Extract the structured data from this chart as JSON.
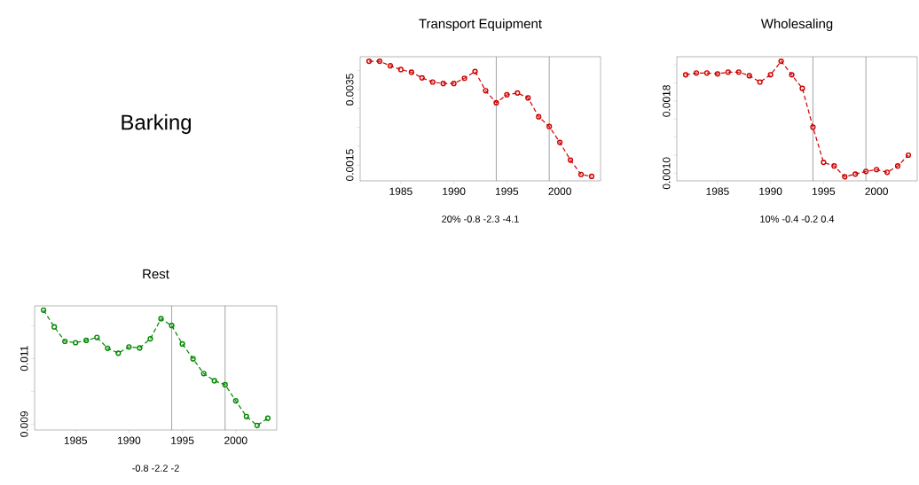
{
  "chart_data": [
    {
      "type": "other",
      "title": "Barking"
    },
    {
      "type": "line",
      "title": "Transport Equipment",
      "annotations": [
        "20% -0.8 -2.3 -4.1"
      ],
      "color": "#cc0000",
      "marker": "circle",
      "line_style": "dashed",
      "x": [
        1982,
        1983,
        1984,
        1985,
        1986,
        1987,
        1988,
        1989,
        1990,
        1991,
        1992,
        1993,
        1994,
        1995,
        1996,
        1997,
        1998,
        1999,
        2000,
        2001,
        2002,
        2003
      ],
      "values": [
        0.00425,
        0.00425,
        0.00413,
        0.00403,
        0.00396,
        0.00381,
        0.0037,
        0.00366,
        0.00366,
        0.0038,
        0.00398,
        0.00347,
        0.00315,
        0.00336,
        0.00341,
        0.00328,
        0.00278,
        0.00252,
        0.0021,
        0.00163,
        0.00125,
        0.0012
      ],
      "xlim": [
        1981.16,
        2003.84
      ],
      "ylim": [
        0.00108,
        0.00437
      ],
      "xticks": [
        1985,
        1990,
        1995,
        2000
      ],
      "yticks": [
        {
          "value": 0.0015,
          "label": "0.0015"
        },
        {
          "value": 0.002,
          "label": null
        },
        {
          "value": 0.0025,
          "label": null
        },
        {
          "value": 0.003,
          "label": null
        },
        {
          "value": 0.0035,
          "label": "0.0035"
        },
        {
          "value": 0.004,
          "label": null
        }
      ],
      "ref_lines": [
        {
          "axis": "x",
          "value": 1994,
          "color": "#8c8c8c"
        },
        {
          "axis": "x",
          "value": 1999,
          "color": "#8c8c8c"
        }
      ]
    },
    {
      "type": "line",
      "title": "Wholesaling",
      "annotations": [
        "10% -0.4 -0.2 0.4"
      ],
      "color": "#cc0000",
      "marker": "circle",
      "line_style": "dashed",
      "x": [
        1982,
        1983,
        1984,
        1985,
        1986,
        1987,
        1988,
        1989,
        1990,
        1991,
        1992,
        1993,
        1994,
        1995,
        1996,
        1997,
        1998,
        1999,
        2000,
        2001,
        2002,
        2003
      ],
      "values": [
        0.00209,
        0.00211,
        0.00211,
        0.0021,
        0.00212,
        0.00212,
        0.00208,
        0.00201,
        0.00209,
        0.00224,
        0.00209,
        0.00194,
        0.00151,
        0.00112,
        0.00108,
        0.00096,
        0.00099,
        0.00102,
        0.00104,
        0.00101,
        0.00108,
        0.0012
      ],
      "xlim": [
        1981.16,
        2003.84
      ],
      "ylim": [
        0.000915,
        0.00229
      ],
      "xticks": [
        1985,
        1990,
        1995,
        2000
      ],
      "yticks": [
        {
          "value": 0.001,
          "label": "0.0010"
        },
        {
          "value": 0.0012,
          "label": null
        },
        {
          "value": 0.0014,
          "label": null
        },
        {
          "value": 0.0016,
          "label": null
        },
        {
          "value": 0.0018,
          "label": "0.0018"
        },
        {
          "value": 0.002,
          "label": null
        },
        {
          "value": 0.0022,
          "label": null
        }
      ],
      "ref_lines": [
        {
          "axis": "x",
          "value": 1994,
          "color": "#8c8c8c"
        },
        {
          "axis": "x",
          "value": 1999,
          "color": "#8c8c8c"
        }
      ]
    },
    {
      "type": "line",
      "title": "Rest",
      "annotations": [
        "-0.8 -2.2 -2"
      ],
      "color": "#008800",
      "marker": "circle",
      "line_style": "dashed",
      "x": [
        1982,
        1983,
        1984,
        1985,
        1986,
        1987,
        1988,
        1989,
        1990,
        1991,
        1992,
        1993,
        1994,
        1995,
        1996,
        1997,
        1998,
        1999,
        2000,
        2001,
        2002,
        2003
      ],
      "values": [
        0.01247,
        0.01196,
        0.01152,
        0.01148,
        0.01155,
        0.01164,
        0.01131,
        0.01116,
        0.01135,
        0.01132,
        0.0116,
        0.01221,
        0.012,
        0.01144,
        0.01099,
        0.01054,
        0.01032,
        0.0102,
        0.00971,
        0.00923,
        0.00896,
        0.00918
      ],
      "xlim": [
        1981.16,
        2003.84
      ],
      "ylim": [
        0.00882,
        0.0126
      ],
      "xticks": [
        1985,
        1990,
        1995,
        2000
      ],
      "yticks": [
        {
          "value": 0.009,
          "label": "0.009"
        },
        {
          "value": 0.01,
          "label": null
        },
        {
          "value": 0.011,
          "label": "0.011"
        },
        {
          "value": 0.012,
          "label": null
        }
      ],
      "ref_lines": [
        {
          "axis": "x",
          "value": 1994,
          "color": "#8c8c8c"
        },
        {
          "axis": "x",
          "value": 1999,
          "color": "#8c8c8c"
        }
      ]
    }
  ]
}
